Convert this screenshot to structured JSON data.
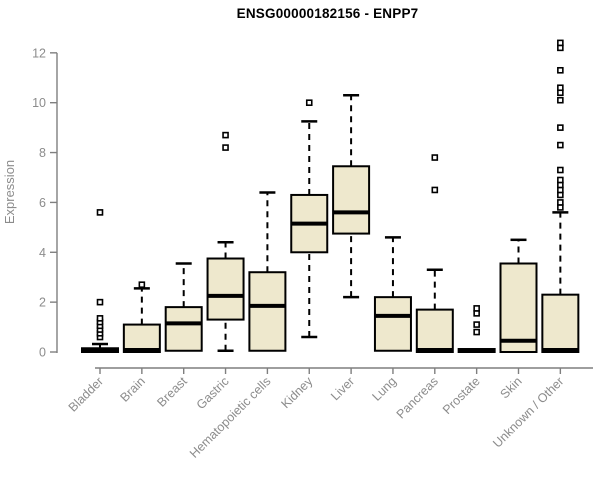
{
  "title": "ENSG00000182156 - ENPP7",
  "colors": {
    "box_fill": "#EEE8CD",
    "box_border": "#000000",
    "median": "#000000",
    "whisker": "#000000",
    "outlier_stroke": "#000000",
    "outlier_fill": "#ffffff",
    "axis_line": "#7f7f7f",
    "tick_text": "#8c8c8c",
    "title_text": "#000000",
    "background": "#ffffff"
  },
  "chart_data": {
    "type": "boxplot",
    "title": "ENSG00000182156 - ENPP7",
    "xlabel": "",
    "ylabel": "Expression",
    "ylim": [
      0,
      12
    ],
    "yticks": [
      0,
      2,
      4,
      6,
      8,
      10,
      12
    ],
    "grid": false,
    "legend": "none",
    "categories": [
      "Bladder",
      "Brain",
      "Breast",
      "Gastric",
      "Hematopoietic cells",
      "Kidney",
      "Liver",
      "Lung",
      "Pancreas",
      "Prostate",
      "Skin",
      "Unknown / Other"
    ],
    "series": [
      {
        "name": "Bladder",
        "q1": 0,
        "median": 0.08,
        "q3": 0.15,
        "whisker_low": 0,
        "whisker_high": 0.32,
        "outliers": [
          0.6,
          0.75,
          0.9,
          1.05,
          1.2,
          1.35,
          2.0,
          5.6
        ]
      },
      {
        "name": "Brain",
        "q1": 0,
        "median": 0.08,
        "q3": 1.1,
        "whisker_low": 0,
        "whisker_high": 2.55,
        "outliers": [
          2.7
        ]
      },
      {
        "name": "Breast",
        "q1": 0.05,
        "median": 1.15,
        "q3": 1.8,
        "whisker_low": 0.05,
        "whisker_high": 3.55,
        "outliers": []
      },
      {
        "name": "Gastric",
        "q1": 1.3,
        "median": 2.25,
        "q3": 3.75,
        "whisker_low": 0.05,
        "whisker_high": 4.4,
        "outliers": [
          8.2,
          8.7
        ]
      },
      {
        "name": "Hematopoietic cells",
        "q1": 0.05,
        "median": 1.85,
        "q3": 3.2,
        "whisker_low": 0.05,
        "whisker_high": 6.4,
        "outliers": []
      },
      {
        "name": "Kidney",
        "q1": 4.0,
        "median": 5.15,
        "q3": 6.3,
        "whisker_low": 0.6,
        "whisker_high": 9.25,
        "outliers": [
          10.0
        ]
      },
      {
        "name": "Liver",
        "q1": 4.75,
        "median": 5.6,
        "q3": 7.45,
        "whisker_low": 2.2,
        "whisker_high": 10.3,
        "outliers": []
      },
      {
        "name": "Lung",
        "q1": 0.05,
        "median": 1.45,
        "q3": 2.2,
        "whisker_low": 0.05,
        "whisker_high": 4.6,
        "outliers": []
      },
      {
        "name": "Pancreas",
        "q1": 0,
        "median": 0.08,
        "q3": 1.7,
        "whisker_low": 0,
        "whisker_high": 3.3,
        "outliers": [
          6.5,
          7.8
        ]
      },
      {
        "name": "Prostate",
        "q1": 0,
        "median": 0.06,
        "q3": 0.12,
        "whisker_low": 0,
        "whisker_high": 0.12,
        "outliers": [
          0.8,
          1.1,
          1.55,
          1.75
        ]
      },
      {
        "name": "Skin",
        "q1": 0,
        "median": 0.45,
        "q3": 3.55,
        "whisker_low": 0,
        "whisker_high": 4.5,
        "outliers": []
      },
      {
        "name": "Unknown / Other",
        "q1": 0,
        "median": 0.08,
        "q3": 2.3,
        "whisker_low": 0,
        "whisker_high": 5.6,
        "outliers": [
          5.8,
          6.0,
          6.3,
          6.5,
          6.7,
          6.9,
          7.3,
          8.3,
          9.0,
          10.1,
          10.4,
          10.6,
          11.3,
          12.2,
          12.4
        ]
      }
    ]
  }
}
